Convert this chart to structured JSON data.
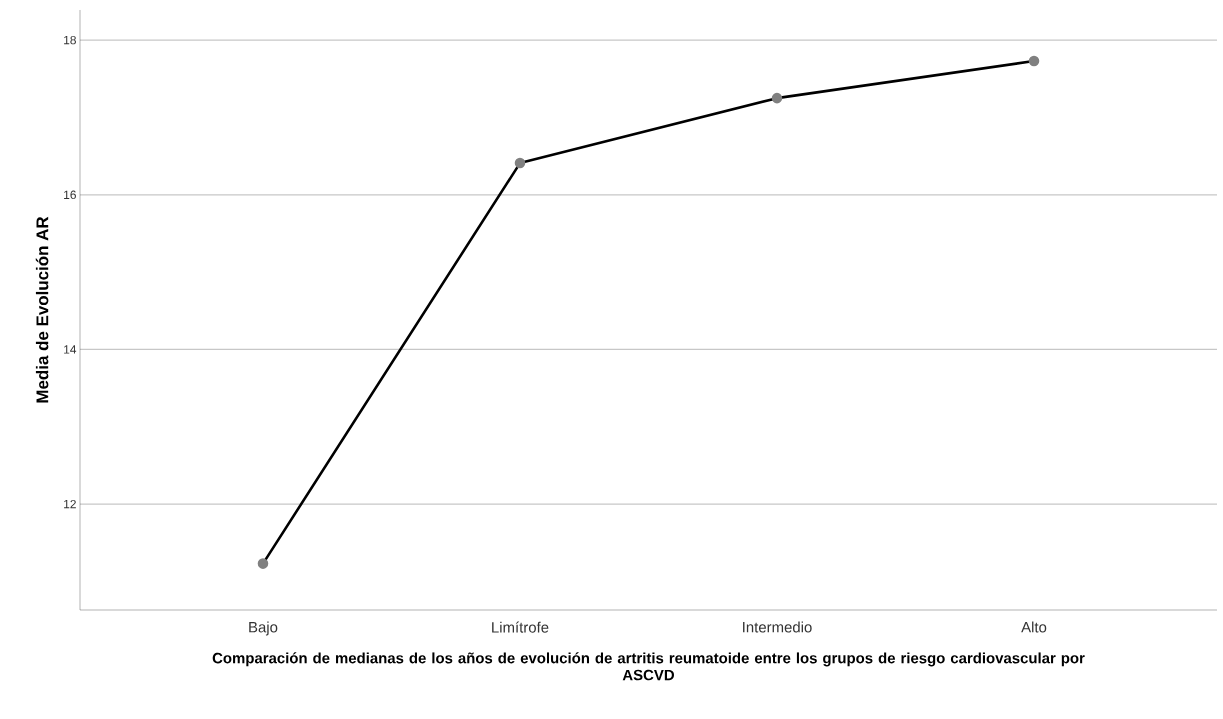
{
  "chart_data": {
    "type": "line",
    "xlabel": "Comparación de medianas de los años de evolución de artritis reumatoide entre los grupos de riesgo cardiovascular por ASCVD",
    "ylabel": "Media de Evolución AR",
    "categories": [
      "Bajo",
      "Limítrofe",
      "Intermedio",
      "Alto"
    ],
    "series": [
      {
        "color": "#000000",
        "values": [
          11.23,
          16.41,
          17.25,
          17.73
        ]
      }
    ],
    "ylim": [
      10.63,
      18.39
    ],
    "yticks": [
      12,
      14,
      16,
      18
    ],
    "grid": "y",
    "marker": "circle",
    "line_style": "solid"
  }
}
